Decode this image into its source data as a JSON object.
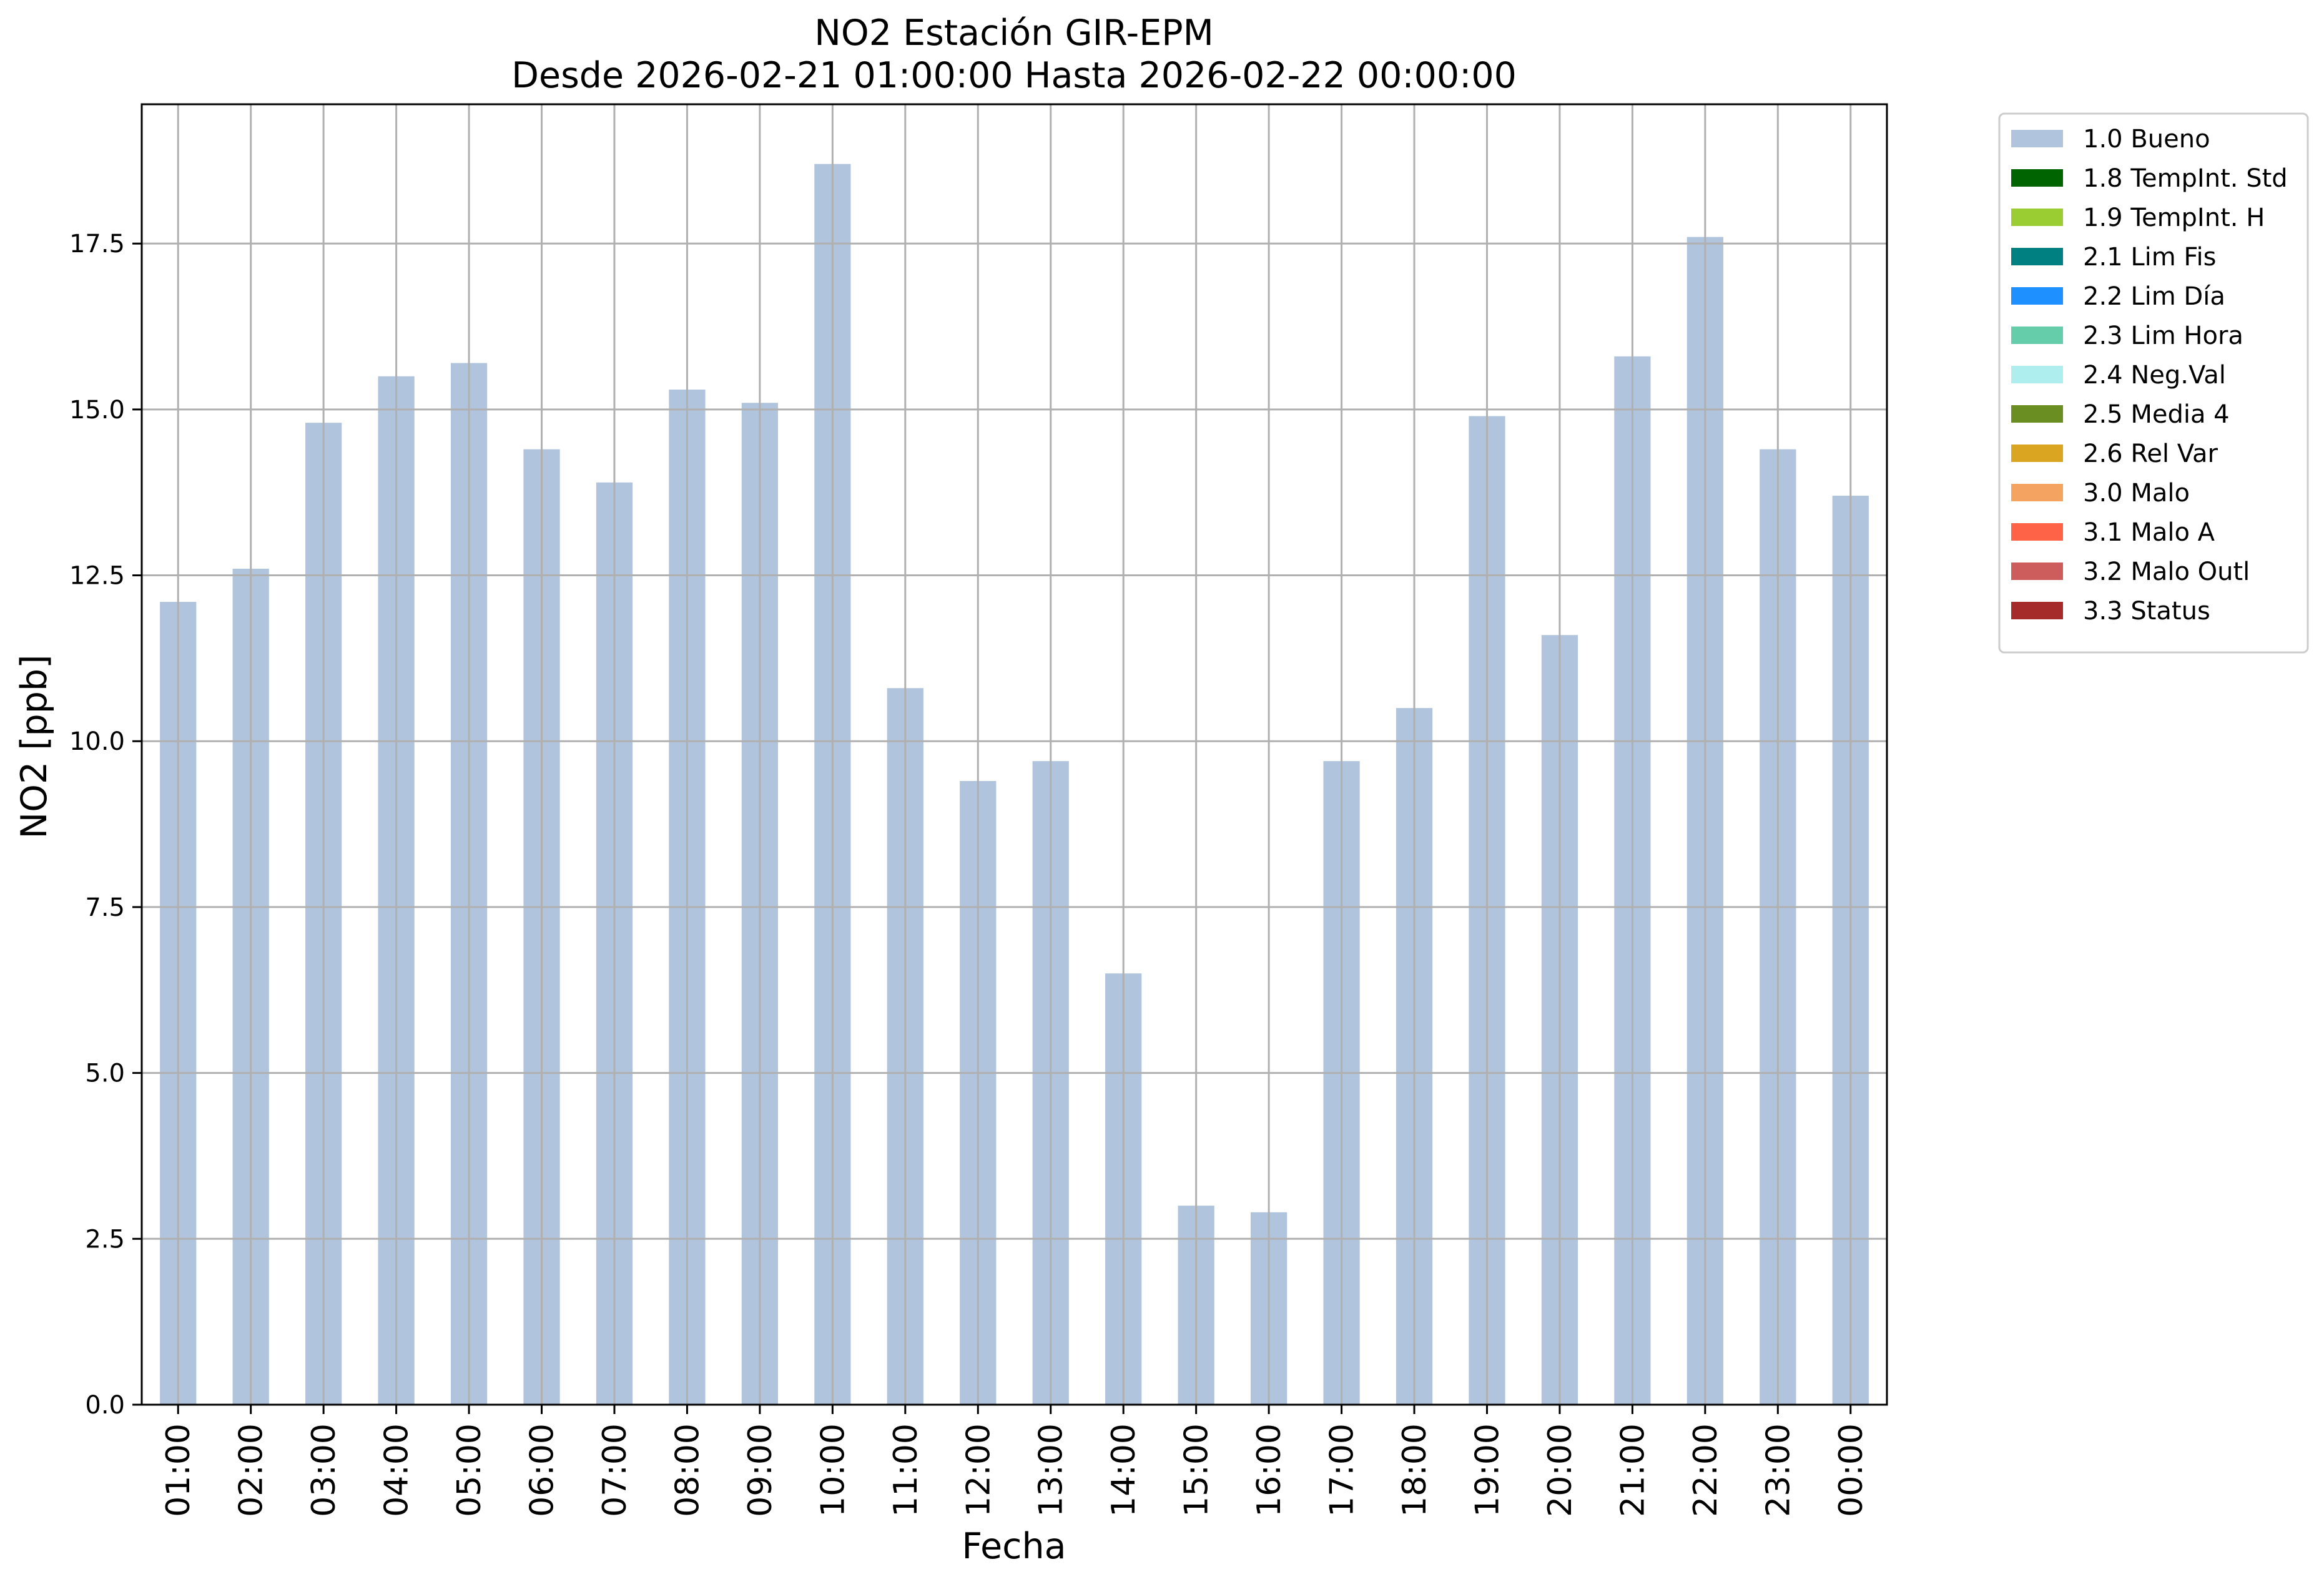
{
  "chart_data": {
    "type": "bar",
    "title": "NO2 Estación GIR-EPM",
    "subtitle": "Desde 2026-02-21 01:00:00 Hasta 2026-02-22 00:00:00",
    "xlabel": "Fecha",
    "ylabel": "NO2 [ppb]",
    "ylim": [
      0,
      19.6
    ],
    "yticks": [
      "0.0",
      "2.5",
      "5.0",
      "7.5",
      "10.0",
      "12.5",
      "15.0",
      "17.5"
    ],
    "grid": true,
    "legend_position": "outside-top-right",
    "categories": [
      "01:00",
      "02:00",
      "03:00",
      "04:00",
      "05:00",
      "06:00",
      "07:00",
      "08:00",
      "09:00",
      "10:00",
      "11:00",
      "12:00",
      "13:00",
      "14:00",
      "15:00",
      "16:00",
      "17:00",
      "18:00",
      "19:00",
      "20:00",
      "21:00",
      "22:00",
      "23:00",
      "00:00"
    ],
    "series": [
      {
        "name": "1.0 Bueno",
        "color": "#b0c4de",
        "values": [
          12.1,
          12.6,
          14.8,
          15.5,
          15.7,
          14.4,
          13.9,
          15.3,
          15.1,
          18.7,
          10.8,
          9.4,
          9.7,
          6.5,
          3.0,
          2.9,
          9.7,
          10.5,
          14.9,
          11.6,
          15.8,
          17.6,
          14.4,
          13.7
        ]
      }
    ],
    "legend": [
      {
        "label": "1.0 Bueno",
        "color": "#b0c4de"
      },
      {
        "label": "1.8 TempInt. Std",
        "color": "#006400"
      },
      {
        "label": "1.9 TempInt. H",
        "color": "#9acd32"
      },
      {
        "label": "2.1 Lim Fis",
        "color": "#008080"
      },
      {
        "label": "2.2 Lim Día",
        "color": "#1e90ff"
      },
      {
        "label": "2.3 Lim Hora",
        "color": "#66cdaa"
      },
      {
        "label": "2.4 Neg.Val",
        "color": "#afeeee"
      },
      {
        "label": "2.5 Media 4",
        "color": "#6b8e23"
      },
      {
        "label": "2.6 Rel Var",
        "color": "#daa520"
      },
      {
        "label": "3.0 Malo",
        "color": "#f4a460"
      },
      {
        "label": "3.1 Malo A",
        "color": "#ff6347"
      },
      {
        "label": "3.2 Malo Outl",
        "color": "#cd5c5c"
      },
      {
        "label": "3.3 Status",
        "color": "#a52a2a"
      }
    ]
  }
}
